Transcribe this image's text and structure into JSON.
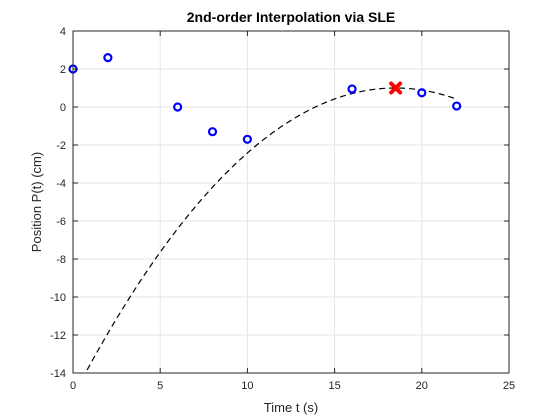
{
  "chart_data": {
    "type": "scatter",
    "title": "2nd-order Interpolation via SLE",
    "xlabel": "Time t (s)",
    "ylabel": "Position P(t) (cm)",
    "xlim": [
      0,
      25
    ],
    "ylim": [
      -14,
      4
    ],
    "xticks": [
      0,
      5,
      10,
      15,
      20,
      25
    ],
    "yticks": [
      -14,
      -12,
      -10,
      -8,
      -6,
      -4,
      -2,
      0,
      2,
      4
    ],
    "grid": true,
    "series": [
      {
        "kind": "markers",
        "marker": "circle",
        "color": "#0000ff",
        "x": [
          0,
          2,
          6,
          8,
          10,
          16,
          20,
          22
        ],
        "y": [
          2.0,
          2.6,
          0.0,
          -1.3,
          -1.7,
          0.95,
          0.75,
          0.05
        ]
      },
      {
        "kind": "curve",
        "style": "dashed",
        "color": "#000000",
        "coefficients": {
          "a": -0.0475,
          "b": 1.756,
          "c": -15.23
        },
        "x_range": [
          0,
          22
        ]
      },
      {
        "kind": "markers",
        "marker": "x-filled",
        "color": "#ff0000",
        "x": [
          18.5
        ],
        "y": [
          1.0
        ]
      }
    ]
  }
}
